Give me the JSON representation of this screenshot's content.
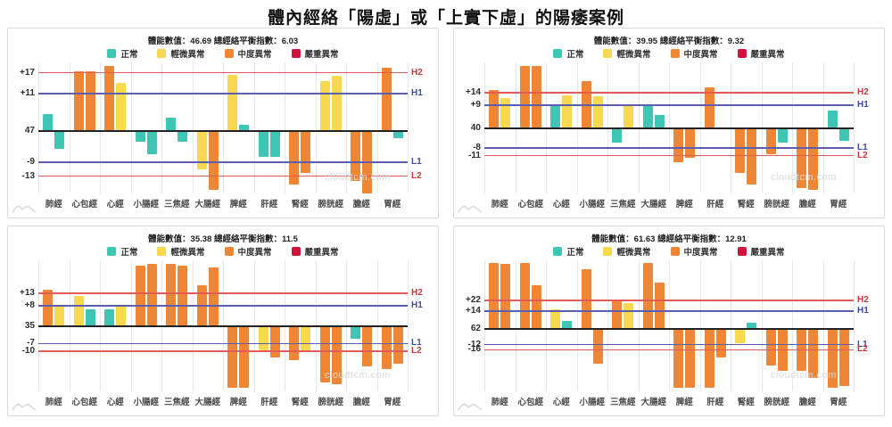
{
  "page_title": "體內經絡「陽虛」或「上實下虛」的陽痿案例",
  "watermark": "cloudtcm.com",
  "colors": {
    "normal": "#3fc5b3",
    "mild": "#f7d84f",
    "moderate": "#ef8635",
    "severe": "#d0123a",
    "line_red": "#e25b5b",
    "line_blue": "#5b5eae",
    "baseline": "#222222",
    "label_red": "#c23b3b",
    "label_blue": "#3c4c9e"
  },
  "legend": [
    {
      "label": "正常",
      "level": "normal"
    },
    {
      "label": "輕微異常",
      "level": "mild"
    },
    {
      "label": "中度異常",
      "level": "moderate"
    },
    {
      "label": "嚴重異常",
      "level": "severe"
    }
  ],
  "chart_data": [
    {
      "type": "bar",
      "title": "體能數值：46.69 總經絡平衡指數：6.03",
      "energy_value": 46.69,
      "balance_index": 6.03,
      "categories": [
        "肺經",
        "心包經",
        "心經",
        "小腸經",
        "三焦經",
        "大腸經",
        "脾經",
        "肝經",
        "腎經",
        "膀胱經",
        "膽經",
        "胃經"
      ],
      "series": [
        {
          "name": "bar-1",
          "values": [
            5,
            17.5,
            19,
            -3,
            4,
            -11,
            16.5,
            -7.5,
            -15.5,
            14.5,
            -14.5,
            18.5
          ],
          "levels": [
            "normal",
            "moderate",
            "moderate",
            "normal",
            "normal",
            "mild",
            "mild",
            "normal",
            "moderate",
            "mild",
            "moderate",
            "moderate"
          ]
        },
        {
          "name": "bar-2",
          "values": [
            -5,
            17.5,
            14,
            -6.5,
            -3,
            -17,
            2,
            -7.5,
            -12,
            16,
            -18,
            -2
          ],
          "levels": [
            "normal",
            "moderate",
            "mild",
            "normal",
            "normal",
            "moderate",
            "normal",
            "normal",
            "moderate",
            "mild",
            "moderate",
            "normal"
          ]
        }
      ],
      "baseline_label": "47",
      "ref_lines": {
        "h2": 17,
        "h1": 11,
        "l1": -9,
        "l2": -13
      },
      "ref_labels": {
        "h2": "+17",
        "h1": "+11",
        "l1": "-9",
        "l2": "-13"
      },
      "right_labels": [
        "H2",
        "H1",
        "L1",
        "L2"
      ],
      "ylim": [
        -18,
        20
      ],
      "grid": true,
      "legend_position": "top"
    },
    {
      "type": "bar",
      "title": "體能數值：39.95 總經絡平衡指數：9.32",
      "energy_value": 39.95,
      "balance_index": 9.32,
      "categories": [
        "肺經",
        "心包經",
        "心經",
        "小腸經",
        "三焦經",
        "大腸經",
        "脾經",
        "肝經",
        "腎經",
        "膀胱經",
        "膽經",
        "胃經"
      ],
      "series": [
        {
          "name": "bar-1",
          "values": [
            15,
            24.5,
            8.5,
            18.5,
            -6,
            8.5,
            -13.5,
            16,
            -18,
            -10.5,
            -24,
            7
          ],
          "levels": [
            "moderate",
            "moderate",
            "normal",
            "moderate",
            "normal",
            "normal",
            "moderate",
            "moderate",
            "moderate",
            "moderate",
            "moderate",
            "normal"
          ]
        },
        {
          "name": "bar-2",
          "values": [
            12,
            24.5,
            13,
            12.5,
            9,
            5,
            -12,
            0,
            -22.5,
            -6,
            -24.5,
            -5
          ],
          "levels": [
            "mild",
            "moderate",
            "mild",
            "mild",
            "mild",
            "normal",
            "moderate",
            "normal",
            "moderate",
            "normal",
            "moderate",
            "normal"
          ]
        }
      ],
      "baseline_label": "40",
      "ref_lines": {
        "h2": 14,
        "h1": 9,
        "l1": -8,
        "l2": -11
      },
      "ref_labels": {
        "h2": "+14",
        "h1": "+9",
        "l1": "-8",
        "l2": "-11"
      },
      "right_labels": [
        "H2",
        "H1",
        "L1",
        "L2"
      ],
      "ylim": [
        -26,
        26
      ],
      "grid": true,
      "legend_position": "top"
    },
    {
      "type": "bar",
      "title": "體能數值：35.38 總經絡平衡指數：11.5",
      "energy_value": 35.38,
      "balance_index": 11.5,
      "categories": [
        "肺經",
        "心包經",
        "心經",
        "小腸經",
        "三焦經",
        "大腸經",
        "脾經",
        "肝經",
        "腎經",
        "膀胱經",
        "膽經",
        "胃經"
      ],
      "series": [
        {
          "name": "bar-1",
          "values": [
            14.5,
            12,
            6.5,
            24,
            24.5,
            16,
            -24.5,
            -10.5,
            -13.5,
            -22.5,
            -5,
            -17
          ],
          "levels": [
            "moderate",
            "mild",
            "normal",
            "moderate",
            "moderate",
            "moderate",
            "moderate",
            "mild",
            "moderate",
            "moderate",
            "normal",
            "moderate"
          ]
        },
        {
          "name": "bar-2",
          "values": [
            8,
            6.5,
            8,
            24.5,
            24,
            23,
            -24.5,
            -12.5,
            -10.5,
            -23,
            -16,
            -15
          ],
          "levels": [
            "mild",
            "normal",
            "mild",
            "moderate",
            "moderate",
            "moderate",
            "moderate",
            "moderate",
            "mild",
            "moderate",
            "moderate",
            "moderate"
          ]
        }
      ],
      "baseline_label": "35",
      "ref_lines": {
        "h2": 13,
        "h1": 8,
        "l1": -7,
        "l2": -10
      },
      "ref_labels": {
        "h2": "+13",
        "h1": "+8",
        "l1": "-7",
        "l2": "-10"
      },
      "right_labels": [
        "H2",
        "H1",
        "L1",
        "L2"
      ],
      "ylim": [
        -26,
        26
      ],
      "grid": true,
      "legend_position": "top"
    },
    {
      "type": "bar",
      "title": "體能數值：61.63 總經絡平衡指數：12.91",
      "energy_value": 61.63,
      "balance_index": 12.91,
      "categories": [
        "肺經",
        "心包經",
        "心經",
        "小腸經",
        "三焦經",
        "大腸經",
        "脾經",
        "肝經",
        "腎經",
        "膀胱經",
        "膽經",
        "胃經"
      ],
      "series": [
        {
          "name": "bar-1",
          "values": [
            51,
            51,
            15,
            46,
            23,
            51,
            -45,
            -45,
            -11,
            -28,
            -32,
            -45
          ],
          "levels": [
            "moderate",
            "moderate",
            "mild",
            "moderate",
            "moderate",
            "moderate",
            "moderate",
            "moderate",
            "mild",
            "moderate",
            "moderate",
            "moderate"
          ]
        },
        {
          "name": "bar-2",
          "values": [
            50,
            34,
            6,
            -27,
            20,
            36,
            -45,
            -22,
            5,
            -32,
            -38,
            -44
          ],
          "levels": [
            "moderate",
            "moderate",
            "normal",
            "moderate",
            "mild",
            "moderate",
            "moderate",
            "moderate",
            "normal",
            "moderate",
            "moderate",
            "moderate"
          ]
        }
      ],
      "baseline_label": "62",
      "ref_lines": {
        "h2": 22,
        "h1": 14,
        "l1": -12,
        "l2": -16
      },
      "ref_labels": {
        "h2": "+22",
        "h1": "+14",
        "l1": "-12",
        "l2": "-16"
      },
      "right_labels": [
        "H2",
        "H1",
        "L1",
        "L2"
      ],
      "ylim": [
        -48,
        53
      ],
      "grid": true,
      "legend_position": "top"
    }
  ]
}
